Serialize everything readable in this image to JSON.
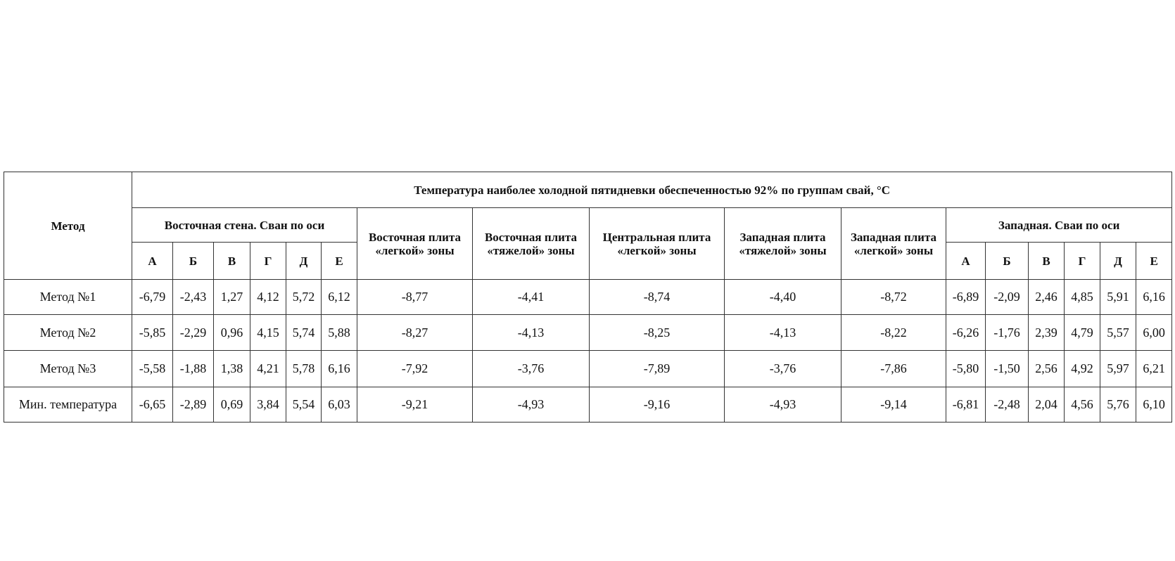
{
  "table": {
    "title": "Температура наиболее холодной пятидневки обеспеченностью 92% по группам свай, °С",
    "row_header": "Метод",
    "groups": [
      {
        "label": "Восточная стена. Сван по оси",
        "sub": [
          "А",
          "Б",
          "В",
          "Г",
          "Д",
          "Е"
        ]
      },
      {
        "label": "Восточная плита «легкой» зоны"
      },
      {
        "label": "Восточная плита «тяжелой» зоны"
      },
      {
        "label": "Центральная плита «легкой» зоны"
      },
      {
        "label": "Западная плита «тяжелой» зоны"
      },
      {
        "label": "Западная плита «легкой» зоны"
      },
      {
        "label": "Западная. Сваи по оси",
        "sub": [
          "А",
          "Б",
          "В",
          "Г",
          "Д",
          "Е"
        ]
      }
    ],
    "rows": [
      {
        "label": "Метод №1",
        "values": [
          "-6,79",
          "-2,43",
          "1,27",
          "4,12",
          "5,72",
          "6,12",
          "-8,77",
          "-4,41",
          "-8,74",
          "-4,40",
          "-8,72",
          "-6,89",
          "-2,09",
          "2,46",
          "4,85",
          "5,91",
          "6,16"
        ]
      },
      {
        "label": "Метод №2",
        "values": [
          "-5,85",
          "-2,29",
          "0,96",
          "4,15",
          "5,74",
          "5,88",
          "-8,27",
          "-4,13",
          "-8,25",
          "-4,13",
          "-8,22",
          "-6,26",
          "-1,76",
          "2,39",
          "4,79",
          "5,57",
          "6,00"
        ]
      },
      {
        "label": "Метод №3",
        "values": [
          "-5,58",
          "-1,88",
          "1,38",
          "4,21",
          "5,78",
          "6,16",
          "-7,92",
          "-3,76",
          "-7,89",
          "-3,76",
          "-7,86",
          "-5,80",
          "-1,50",
          "2,56",
          "4,92",
          "5,97",
          "6,21"
        ]
      },
      {
        "label": "Мин. температура",
        "values": [
          "-6,65",
          "-2,89",
          "0,69",
          "3,84",
          "5,54",
          "6,03",
          "-9,21",
          "-4,93",
          "-9,16",
          "-4,93",
          "-9,14",
          "-6,81",
          "-2,48",
          "2,04",
          "4,56",
          "5,76",
          "6,10"
        ]
      }
    ]
  }
}
